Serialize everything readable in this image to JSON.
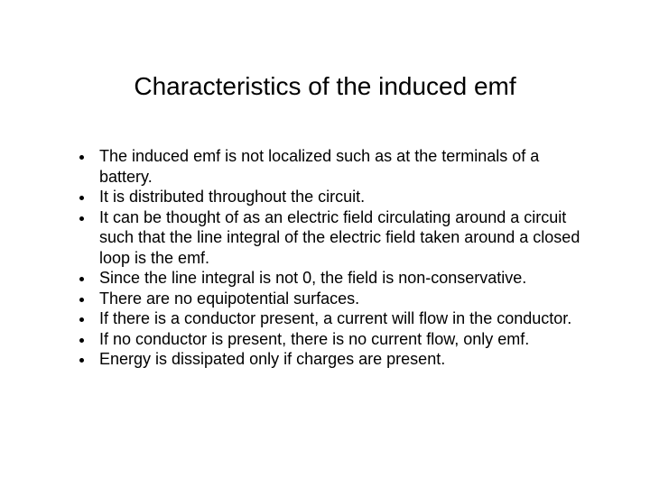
{
  "slide": {
    "title": "Characteristics of the induced emf",
    "title_fontsize": 28,
    "body_fontsize": 18,
    "background_color": "#ffffff",
    "text_color": "#000000",
    "font_family": "Arial",
    "bullets": [
      "The induced emf is not localized such as at the terminals of a battery.",
      "It is distributed throughout the circuit.",
      "It can be thought of as an electric field circulating around a circuit such that the line integral of the electric field taken around a closed loop is the emf.",
      "Since the line integral is not 0, the field is non-conservative.",
      "There are no equipotential surfaces.",
      "If there is a conductor present, a current will flow in the conductor.",
      "If no conductor is present, there is no current flow, only emf.",
      "Energy is dissipated only if charges are present."
    ]
  }
}
